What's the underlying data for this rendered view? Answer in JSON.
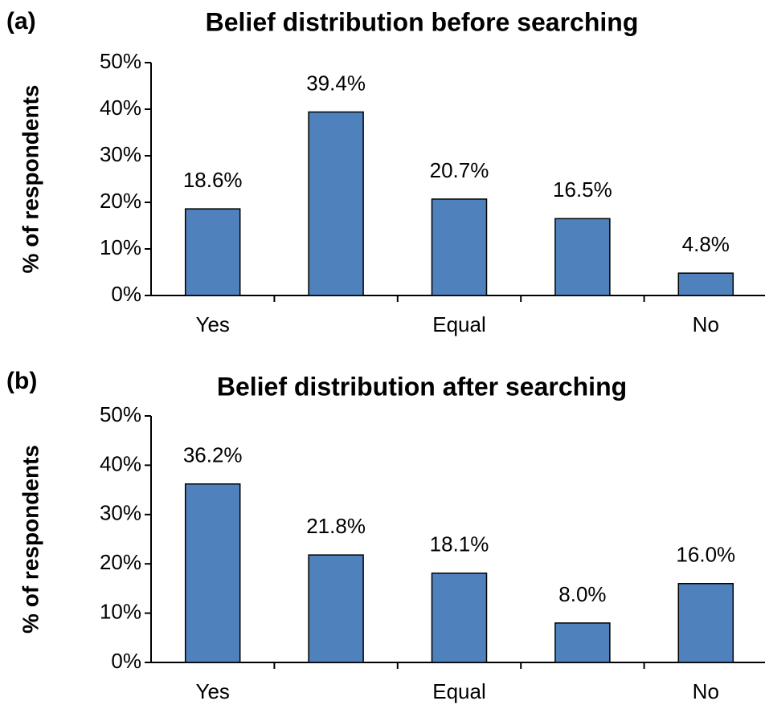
{
  "chart_data": [
    {
      "type": "bar",
      "panel_label": "(a)",
      "title": "Belief distribution before searching",
      "ylabel": "% of respondents",
      "categories": [
        "Yes",
        null,
        "Equal",
        null,
        "No"
      ],
      "values": [
        18.6,
        39.4,
        20.7,
        16.5,
        4.8
      ],
      "value_labels": [
        "18.6%",
        "39.4%",
        "20.7%",
        "16.5%",
        "4.8%"
      ],
      "color": "#4f81bd",
      "ylim": [
        0,
        50
      ],
      "yticks": [
        {
          "value": 0,
          "label": "0%"
        },
        {
          "value": 10,
          "label": "10%"
        },
        {
          "value": 20,
          "label": "20%"
        },
        {
          "value": 30,
          "label": "30%"
        },
        {
          "value": 40,
          "label": "40%"
        },
        {
          "value": 50,
          "label": "50%"
        }
      ]
    },
    {
      "type": "bar",
      "panel_label": "(b)",
      "title": "Belief distribution after searching",
      "ylabel": "% of respondents",
      "categories": [
        "Yes",
        null,
        "Equal",
        null,
        "No"
      ],
      "values": [
        36.2,
        21.8,
        18.1,
        8.0,
        16.0
      ],
      "value_labels": [
        "36.2%",
        "21.8%",
        "18.1%",
        "8.0%",
        "16.0%"
      ],
      "color": "#4f81bd",
      "ylim": [
        0,
        50
      ],
      "yticks": [
        {
          "value": 0,
          "label": "0%"
        },
        {
          "value": 10,
          "label": "10%"
        },
        {
          "value": 20,
          "label": "20%"
        },
        {
          "value": 30,
          "label": "30%"
        },
        {
          "value": 40,
          "label": "40%"
        },
        {
          "value": 50,
          "label": "50%"
        }
      ]
    }
  ]
}
